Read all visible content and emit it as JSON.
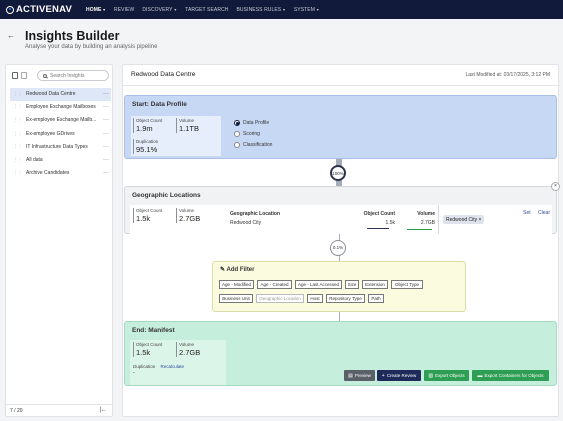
{
  "nav": {
    "logo": "ACTIVENAV",
    "items": [
      {
        "label": "HOME",
        "active": true,
        "caret": true
      },
      {
        "label": "REVIEW",
        "active": false,
        "caret": false
      },
      {
        "label": "DISCOVERY",
        "active": false,
        "caret": true
      },
      {
        "label": "TARGET SEARCH",
        "active": false,
        "caret": false
      },
      {
        "label": "BUSINESS RULES",
        "active": false,
        "caret": true
      },
      {
        "label": "SYSTEM",
        "active": false,
        "caret": true
      }
    ]
  },
  "header": {
    "back": "←",
    "title": "Insights Builder",
    "subtitle": "Analyse your data by building an analysis pipeline"
  },
  "sidebar": {
    "search_placeholder": "Search Insights",
    "items": [
      {
        "label": "Redwood Data Centre",
        "active": true
      },
      {
        "label": "Employee Exchange Mailboxes",
        "active": false
      },
      {
        "label": "Ex-employee Exchange Mailb...",
        "active": false
      },
      {
        "label": "Ex-employee GDrives",
        "active": false
      },
      {
        "label": "IT Infrastructure Data Types",
        "active": false
      },
      {
        "label": "All data",
        "active": false
      },
      {
        "label": "Archive Candidates",
        "active": false
      }
    ],
    "more": "···",
    "pager": "7 / 20",
    "collapse": "|←"
  },
  "main": {
    "title": "Redwood Data Centre",
    "last_modified": "Last Modified at: 03/17/2025, 3:12 PM"
  },
  "start_card": {
    "title": "Start: Data Profile",
    "object_count_label": "Object Count",
    "object_count": "1.9m",
    "volume_label": "Volume",
    "volume": "1.1TB",
    "duplication_label": "Duplication",
    "duplication": "95.1%",
    "options": [
      {
        "label": "Data Profile",
        "selected": true
      },
      {
        "label": "Scoring",
        "selected": false
      },
      {
        "label": "Classification",
        "selected": false
      }
    ]
  },
  "connector_1": "100%",
  "geo_card": {
    "title": "Geographic Locations",
    "close": "×",
    "object_count_label": "Object Count",
    "object_count": "1.5k",
    "volume_label": "Volume",
    "volume": "2.7GB",
    "table": {
      "headers": [
        "Geographic Location",
        "Object Count",
        "Volume"
      ],
      "rows": [
        [
          "Redwood City",
          "1.5k",
          "2.7GB"
        ]
      ]
    },
    "chip": "Redwood City ×",
    "set": "Set",
    "clear": "Clear"
  },
  "connector_2": "0.1%",
  "filter_card": {
    "title": "Add Filter",
    "row1": [
      "Age - Modified",
      "Age - Created",
      "Age - Last Accessed",
      "Size",
      "Extension",
      "Object Type"
    ],
    "row2": [
      "Business Unit",
      "Geographic Location",
      "Host",
      "Repository Type",
      "Path"
    ]
  },
  "manifest_card": {
    "title": "End: Manifest",
    "object_count_label": "Object Count",
    "object_count": "1.5k",
    "volume_label": "Volume",
    "volume": "2.7GB",
    "duplication_label": "Duplication",
    "duplication": "-",
    "recalculate": "Recalculate",
    "buttons": {
      "preview": "Preview",
      "create_review": "Create Review",
      "export_objects": "Export Objects",
      "export_containers": "Export Containers for Objects"
    }
  }
}
